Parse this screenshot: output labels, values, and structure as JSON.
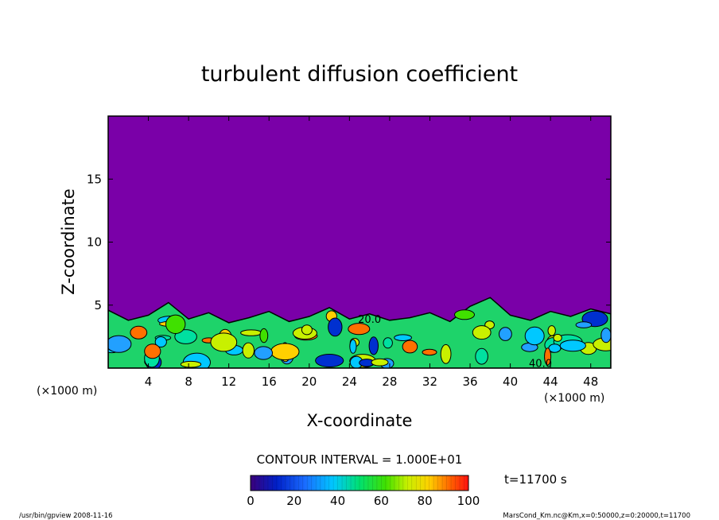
{
  "chart_data": {
    "type": "heatmap",
    "title": "turbulent diffusion coefficient",
    "xlabel": "X-coordinate",
    "ylabel": "Z-coordinate",
    "x_unit": "(×1000 m)",
    "y_unit": "(×1000 m)",
    "xlim": [
      0,
      50
    ],
    "ylim": [
      0,
      20
    ],
    "x_ticks": [
      4,
      8,
      12,
      16,
      20,
      24,
      28,
      32,
      36,
      40,
      44,
      48
    ],
    "y_ticks": [
      5,
      10,
      15
    ],
    "contour_interval": "CONTOUR INTERVAL = 1.000E+01",
    "contour_labels": [
      "20.0",
      "40.0"
    ],
    "colorbar": {
      "min": 0,
      "max": 100,
      "ticks": [
        0,
        20,
        40,
        60,
        80,
        100
      ]
    },
    "time_label": "t=11700 s",
    "turbulent_layer_top": [
      4.6,
      3.8,
      4.2,
      5.2,
      3.9,
      4.4,
      3.6,
      4.0,
      4.5,
      3.7,
      4.1,
      4.8,
      3.9,
      4.3,
      3.8,
      4.0,
      4.4,
      3.7,
      4.9,
      5.6,
      4.2,
      3.8,
      4.5,
      4.1,
      4.7,
      4.3
    ],
    "background_value": 0
  },
  "footer": {
    "left": "/usr/bin/gpview  2008-11-16",
    "right": "MarsCond_Km.nc@Km,x=0:50000,z=0:20000,t=11700"
  }
}
